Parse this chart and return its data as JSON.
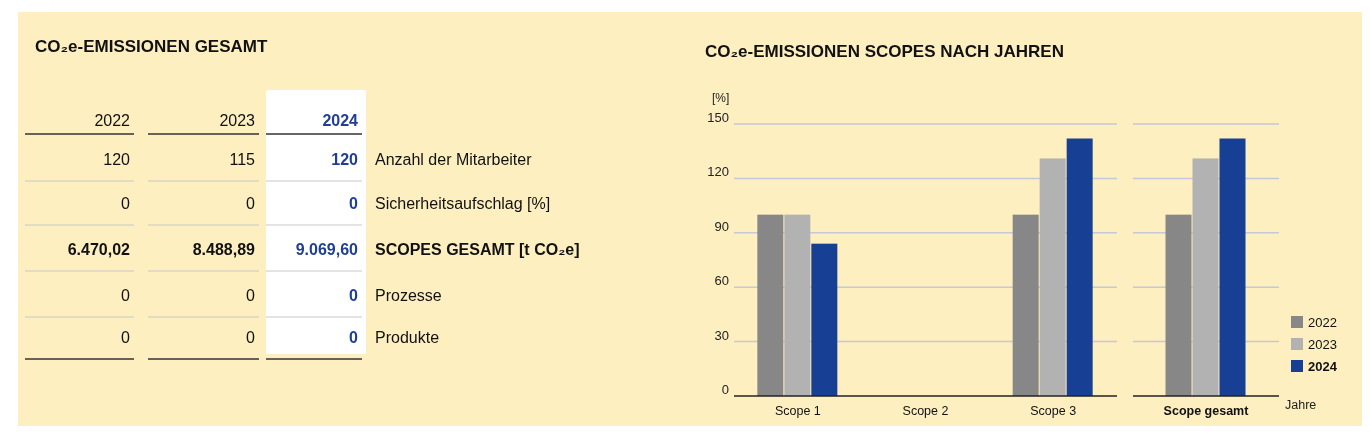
{
  "chart_data": [
    {
      "type": "other",
      "title": "CO₂e-EMISSIONEN GESAMT",
      "categories": [
        "2022",
        "2023",
        "2024"
      ],
      "y2_categories": [
        "Anzahl der Mitarbeiter",
        "Sicherheitsaufschlag [%]",
        "SCOPES GESAMT [t CO₂e]",
        "Prozesse",
        "Produkte"
      ],
      "cell_labels": [
        [
          "120",
          "115",
          "120"
        ],
        [
          "0",
          "0",
          "0"
        ],
        [
          "6.470,02",
          "8.488,89",
          "9.069,60"
        ],
        [
          "0",
          "0",
          "0"
        ],
        [
          "0",
          "0",
          "0"
        ]
      ]
    },
    {
      "type": "bar",
      "title": "CO₂e-EMISSIONEN SCOPES NACH JAHREN",
      "ylabel": "[%]",
      "categories": [
        "Scope 1",
        "Scope 2",
        "Scope 3"
      ],
      "series": [
        {
          "color": "#878787",
          "values": [
            100,
            0,
            100
          ]
        },
        {
          "color": "#b2b2b2",
          "values": [
            100,
            0,
            131
          ]
        },
        {
          "color": "#173f93",
          "values": [
            84,
            0,
            142
          ]
        }
      ],
      "ylim": [
        0,
        150
      ],
      "yticks": [
        0,
        30,
        60,
        90,
        120,
        150
      ],
      "grid": "y",
      "legend": false
    },
    {
      "type": "bar",
      "xlabel": "Jahre",
      "categories": [
        "Scope gesamt"
      ],
      "series": [
        {
          "name": "2022",
          "color": "#878787",
          "values": [
            100
          ]
        },
        {
          "name": "2023",
          "color": "#b2b2b2",
          "values": [
            131
          ]
        },
        {
          "name": "2024",
          "color": "#173f93",
          "values": [
            142
          ]
        }
      ],
      "ylim": [
        0,
        150
      ],
      "yticks": [
        0,
        30,
        60,
        90,
        120,
        150
      ],
      "grid": "y",
      "legend": "right",
      "tick_labels": "x"
    }
  ]
}
